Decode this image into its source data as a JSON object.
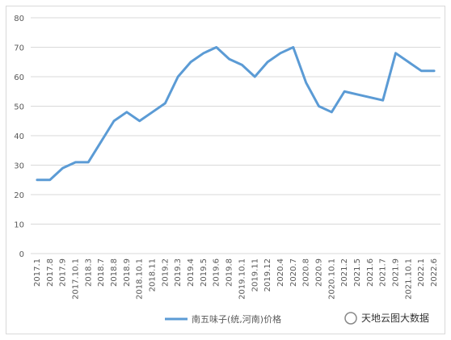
{
  "chart_data": {
    "type": "line",
    "categories": [
      "2017.1",
      "2017.8",
      "2017.9",
      "2017.10.1",
      "2018.3",
      "2018.7",
      "2018.8",
      "2018.9",
      "2018.10.1",
      "2018.11",
      "2019.2",
      "2019.3",
      "2019.4",
      "2019.5",
      "2019.6",
      "2019.8",
      "2019.10.1",
      "2019.11",
      "2019.12",
      "2020.4",
      "2020.7",
      "2020.8",
      "2020.9",
      "2020.10.1",
      "2021.2",
      "2021.5",
      "2021.6",
      "2021.7",
      "2021.9",
      "2021.10.1",
      "2022.1",
      "2022.6"
    ],
    "series": [
      {
        "name": "南五味子(统,河南)价格",
        "color": "#5b9bd5",
        "values": [
          25,
          25,
          29,
          31,
          31,
          38,
          45,
          48,
          45,
          48,
          51,
          60,
          65,
          68,
          70,
          66,
          64,
          60,
          65,
          68,
          70,
          58,
          50,
          48,
          55,
          54,
          53,
          52,
          68,
          65,
          62,
          62
        ]
      }
    ],
    "ylim": [
      0,
      80
    ],
    "yticks": [
      0,
      10,
      20,
      30,
      40,
      50,
      60,
      70,
      80
    ],
    "grid": true,
    "legend": "bottom",
    "watermark": "天地云图大数据"
  }
}
